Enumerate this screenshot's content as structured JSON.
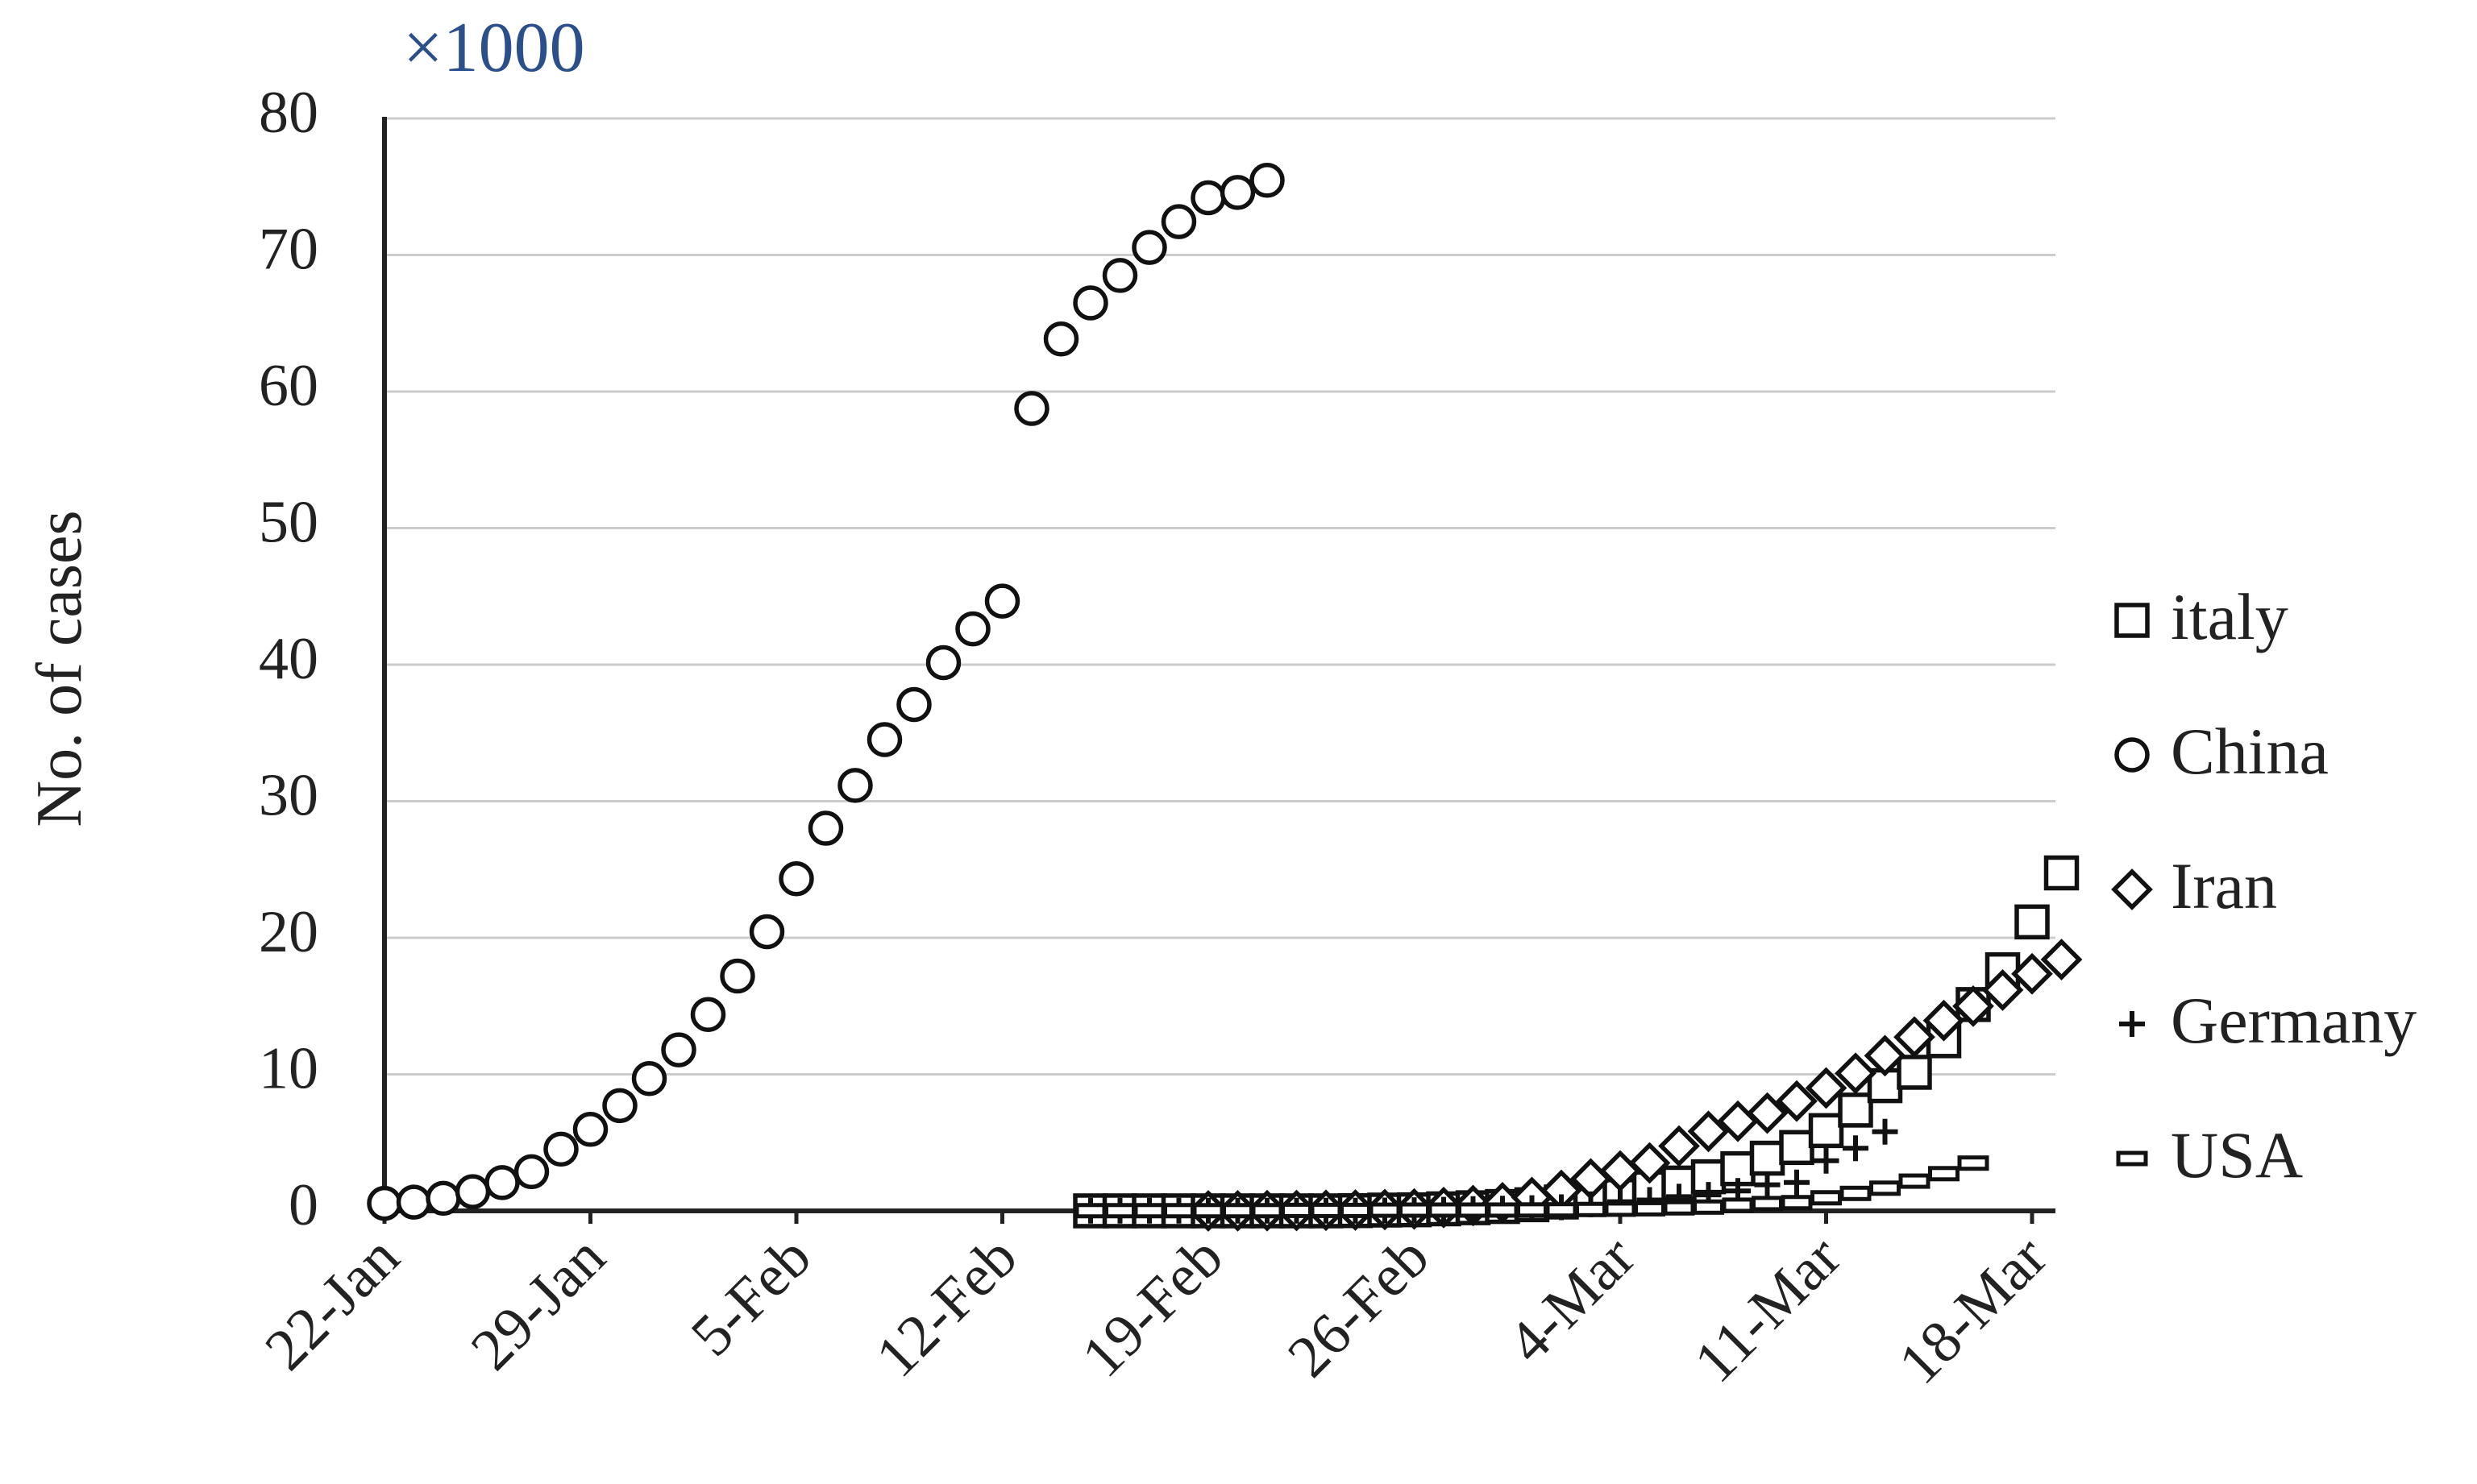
{
  "chart_data": {
    "type": "scatter",
    "multiplier_label": "×1000",
    "ylabel": "No. of cases",
    "xlabel": "",
    "ylim": [
      0,
      80
    ],
    "yticks": [
      0,
      10,
      20,
      30,
      40,
      50,
      60,
      70,
      80
    ],
    "xticks": [
      "22-Jan",
      "29-Jan",
      "5-Feb",
      "12-Feb",
      "19-Feb",
      "26-Feb",
      "4-Mar",
      "11-Mar",
      "18-Mar"
    ],
    "x_start_date": "22-Jan",
    "x_days_span": 58,
    "grid": "horizontal",
    "legend_position": "right",
    "series": [
      {
        "name": "italy",
        "marker": "square",
        "start_day": 24,
        "values": [
          0.003,
          0.003,
          0.003,
          0.003,
          0.003,
          0.003,
          0.003,
          0.003,
          0.003,
          0.02,
          0.06,
          0.08,
          0.15,
          0.23,
          0.32,
          0.45,
          0.65,
          0.89,
          1.13,
          1.69,
          2.04,
          2.5,
          3.09,
          3.86,
          4.64,
          5.88,
          7.38,
          9.17,
          10.15,
          12.46,
          15.11,
          17.66,
          21.16,
          24.75
        ]
      },
      {
        "name": "China",
        "marker": "circle",
        "start_day": 0,
        "values": [
          0.55,
          0.64,
          0.92,
          1.41,
          2.07,
          2.87,
          4.52,
          5.97,
          7.71,
          9.69,
          11.79,
          14.38,
          17.2,
          20.44,
          24.32,
          28.02,
          31.16,
          34.51,
          37.08,
          40.15,
          42.62,
          44.65,
          58.76,
          63.85,
          66.49,
          68.5,
          70.55,
          72.44,
          74.19,
          74.58,
          75.47
        ]
      },
      {
        "name": "Iran",
        "marker": "diamond",
        "start_day": 28,
        "values": [
          0.002,
          0.005,
          0.018,
          0.028,
          0.043,
          0.061,
          0.095,
          0.139,
          0.245,
          0.388,
          0.593,
          0.978,
          1.501,
          2.336,
          2.922,
          3.513,
          4.747,
          5.823,
          6.566,
          7.161,
          8.042,
          9.0,
          10.075,
          11.364,
          12.729,
          13.938,
          14.991,
          16.169,
          17.361,
          18.407
        ]
      },
      {
        "name": "Germany",
        "marker": "plus",
        "start_day": 24,
        "values": [
          0.016,
          0.016,
          0.016,
          0.016,
          0.016,
          0.016,
          0.016,
          0.016,
          0.016,
          0.018,
          0.026,
          0.048,
          0.079,
          0.13,
          0.159,
          0.196,
          0.262,
          0.482,
          0.67,
          0.799,
          1.04,
          1.176,
          1.457,
          1.908,
          2.078,
          3.675,
          4.585,
          5.795
        ]
      },
      {
        "name": "USA",
        "marker": "dash",
        "start_day": 24,
        "values": [
          0.015,
          0.015,
          0.015,
          0.015,
          0.015,
          0.015,
          0.015,
          0.035,
          0.035,
          0.035,
          0.053,
          0.057,
          0.06,
          0.06,
          0.062,
          0.07,
          0.076,
          0.101,
          0.122,
          0.153,
          0.221,
          0.278,
          0.417,
          0.537,
          0.605,
          0.959,
          1.281,
          1.663,
          2.179,
          2.726,
          3.499
        ]
      }
    ]
  }
}
